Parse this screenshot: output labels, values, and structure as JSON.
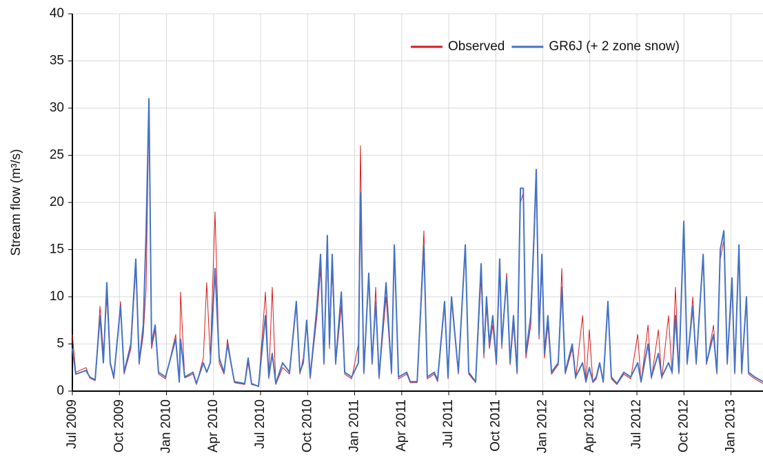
{
  "chart_data": {
    "type": "line",
    "y_label": "Stream flow (m³/s)",
    "legend": "upper-right",
    "grid": true,
    "ylim": [
      0,
      40
    ],
    "yticks": [
      0,
      5,
      10,
      15,
      20,
      25,
      30,
      35,
      40
    ],
    "xlim": [
      2009.5,
      2013.17
    ],
    "xticks": [
      {
        "value": 2009.5,
        "label": "Jul 2009"
      },
      {
        "value": 2009.75,
        "label": "Oct 2009"
      },
      {
        "value": 2010.0,
        "label": "Jan 2010"
      },
      {
        "value": 2010.25,
        "label": "Apr 2010"
      },
      {
        "value": 2010.5,
        "label": "Jul 2010"
      },
      {
        "value": 2010.75,
        "label": "Oct 2010"
      },
      {
        "value": 2011.0,
        "label": "Jan 2011"
      },
      {
        "value": 2011.25,
        "label": "Apr 2011"
      },
      {
        "value": 2011.5,
        "label": "Jul 2011"
      },
      {
        "value": 2011.75,
        "label": "Oct 2011"
      },
      {
        "value": 2012.0,
        "label": "Jan 2012"
      },
      {
        "value": 2012.25,
        "label": "Apr 2012"
      },
      {
        "value": 2012.5,
        "label": "Jul 2012"
      },
      {
        "value": 2012.75,
        "label": "Oct 2012"
      },
      {
        "value": 2013.0,
        "label": "Jan 2013"
      }
    ],
    "x": [
      2009.5,
      2009.518,
      2009.573,
      2009.592,
      2009.621,
      2009.647,
      2009.665,
      2009.683,
      2009.701,
      2009.72,
      2009.756,
      2009.775,
      2009.811,
      2009.837,
      2009.855,
      2009.877,
      2009.892,
      2009.907,
      2009.921,
      2009.94,
      2009.958,
      2009.995,
      2010.049,
      2010.068,
      2010.075,
      2010.097,
      2010.141,
      2010.159,
      2010.196,
      2010.214,
      2010.233,
      2010.258,
      2010.28,
      2010.306,
      2010.324,
      2010.361,
      2010.416,
      2010.434,
      2010.452,
      2010.489,
      2010.526,
      2010.544,
      2010.562,
      2010.581,
      2010.617,
      2010.654,
      2010.69,
      2010.709,
      2010.727,
      2010.745,
      2010.764,
      2010.8,
      2010.819,
      2010.837,
      2010.855,
      2010.866,
      2010.881,
      2010.899,
      2010.929,
      2010.947,
      2010.984,
      2011.02,
      2011.031,
      2011.049,
      2011.075,
      2011.093,
      2011.112,
      2011.13,
      2011.167,
      2011.196,
      2011.211,
      2011.233,
      2011.277,
      2011.295,
      2011.332,
      2011.368,
      2011.386,
      2011.423,
      2011.441,
      2011.478,
      2011.496,
      2011.515,
      2011.551,
      2011.588,
      2011.606,
      2011.643,
      2011.672,
      2011.687,
      2011.701,
      2011.716,
      2011.734,
      2011.753,
      2011.771,
      2011.782,
      2011.808,
      2011.826,
      2011.844,
      2011.863,
      2011.881,
      2011.896,
      2011.91,
      2011.936,
      2011.954,
      2011.965,
      2011.98,
      2011.995,
      2012.009,
      2012.027,
      2012.046,
      2012.082,
      2012.101,
      2012.119,
      2012.156,
      2012.174,
      2012.211,
      2012.229,
      2012.247,
      2012.266,
      2012.284,
      2012.302,
      2012.321,
      2012.346,
      2012.364,
      2012.394,
      2012.43,
      2012.467,
      2012.504,
      2012.522,
      2012.559,
      2012.577,
      2012.614,
      2012.632,
      2012.668,
      2012.687,
      2012.705,
      2012.723,
      2012.749,
      2012.767,
      2012.797,
      2012.815,
      2012.852,
      2012.87,
      2012.907,
      2012.925,
      2012.943,
      2012.962,
      2012.98,
      2013.005,
      2013.02,
      2013.042,
      2013.057,
      2013.082,
      2013.093,
      2013.126,
      2013.17
    ],
    "series": [
      {
        "name": "Observed",
        "color": "#d7191c",
        "values": [
          6,
          2,
          2.5,
          1.4,
          1.1,
          9,
          4,
          10,
          2.8,
          1.3,
          9.5,
          1.8,
          4.5,
          13,
          2.8,
          6,
          11,
          30,
          4.5,
          6.5,
          1.8,
          1.3,
          6,
          0.9,
          10.5,
          1.4,
          1.8,
          0.7,
          3.5,
          11.5,
          3.5,
          19,
          3,
          1.8,
          5.5,
          0.9,
          0.7,
          3,
          0.7,
          0.5,
          10.5,
          1.3,
          11,
          0.7,
          2.5,
          1.8,
          9,
          1.8,
          3.5,
          7,
          1.3,
          8,
          13,
          2.8,
          15,
          4.5,
          13,
          2.8,
          9,
          1.8,
          1.3,
          5,
          26,
          1.8,
          12,
          2.8,
          11,
          1.3,
          10,
          1.8,
          15,
          1.3,
          1.8,
          0.9,
          0.9,
          17,
          1.3,
          1.8,
          1,
          9,
          1.3,
          9.5,
          1.8,
          15,
          1.8,
          0.9,
          12,
          3.5,
          9,
          4.5,
          7,
          2.8,
          13,
          4.5,
          12.5,
          2.8,
          7,
          1.8,
          20,
          21,
          3.5,
          7,
          16,
          22,
          5.5,
          13,
          3.5,
          7,
          1.8,
          2.8,
          13,
          1.8,
          4.5,
          1.3,
          8,
          0.9,
          6.5,
          0.9,
          1.3,
          2.8,
          0.9,
          9,
          1.3,
          0.7,
          1.8,
          1.3,
          6,
          0.9,
          7,
          1.3,
          6.5,
          1.3,
          8,
          1.8,
          11,
          1.8,
          17,
          2.8,
          10,
          2.8,
          14,
          2.8,
          7,
          1.8,
          14,
          16,
          2.8,
          11,
          1.8,
          15,
          1.8,
          9.5,
          1.8,
          1.3,
          0.8
        ]
      },
      {
        "name": "GR6J (+ 2 zone snow)",
        "color": "#4472c4",
        "values": [
          4.5,
          1.8,
          2.2,
          1.5,
          1.2,
          8,
          3,
          11.5,
          3,
          1.5,
          9,
          2,
          5,
          14,
          3,
          7,
          17,
          31,
          5,
          7,
          2,
          1.5,
          5.5,
          1,
          5.5,
          1.5,
          2,
          0.8,
          3,
          2,
          3,
          13,
          3.5,
          2,
          5,
          1,
          0.8,
          3.5,
          0.8,
          0.5,
          8,
          1.5,
          4,
          0.8,
          3,
          2,
          9.5,
          2,
          3,
          7.5,
          1.5,
          9,
          14.5,
          3,
          16.5,
          5,
          14.5,
          3,
          10.5,
          2,
          1.5,
          3,
          21,
          2,
          12.5,
          3,
          9.5,
          1.5,
          11.5,
          2,
          15.5,
          1.5,
          2,
          1,
          1,
          15.5,
          1.5,
          2,
          1.2,
          9.5,
          1.5,
          10,
          2,
          15.5,
          2,
          1,
          13.5,
          4,
          10,
          5,
          8,
          3,
          14,
          5,
          12,
          3,
          8,
          2,
          21.5,
          21.5,
          4,
          8,
          17,
          23.5,
          6,
          14.5,
          4,
          8,
          2,
          3,
          11,
          2,
          5,
          1.5,
          3,
          1,
          2.5,
          1,
          1.5,
          3,
          1,
          9.5,
          1.5,
          0.8,
          2,
          1.5,
          3,
          1,
          5,
          1.5,
          4,
          1.5,
          3,
          2,
          8,
          2,
          18,
          3,
          9,
          3,
          14.5,
          3,
          6,
          2,
          15,
          17,
          3,
          12,
          2,
          15.5,
          2,
          10,
          2,
          1.5,
          1
        ]
      }
    ]
  }
}
